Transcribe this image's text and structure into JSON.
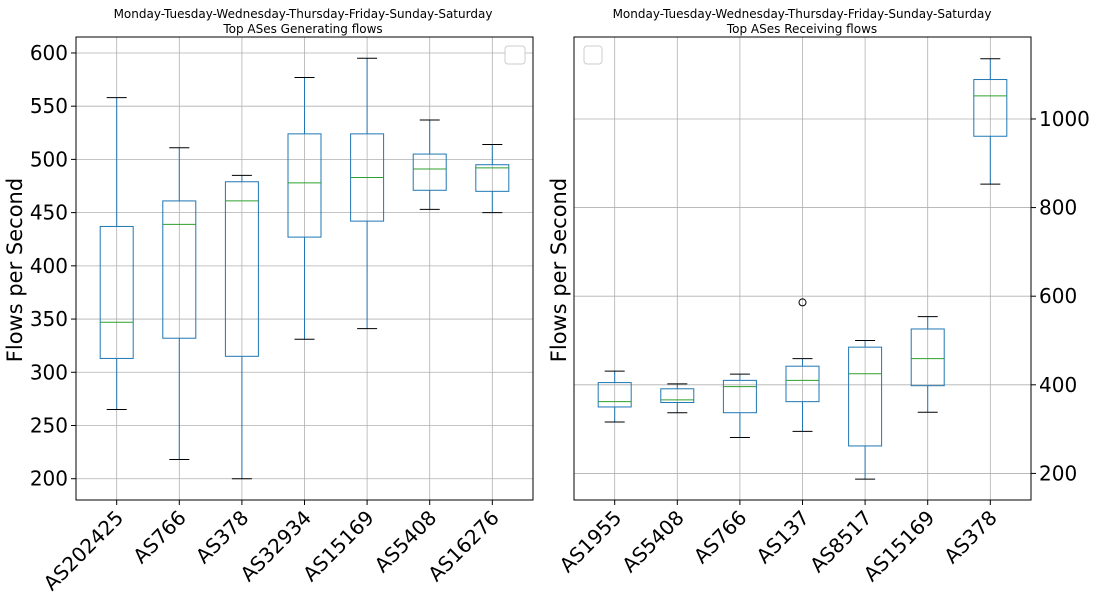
{
  "chart_data": [
    {
      "type": "box",
      "title_line1": "Monday-Tuesday-Wednesday-Thursday-Friday-Sunday-Saturday",
      "title_line2": "Top ASes Generating flows",
      "ylabel": "Flows per Second",
      "xlabel": "",
      "yaxis_side": "left",
      "ylim": [
        180,
        615
      ],
      "yticks": [
        200,
        250,
        300,
        350,
        400,
        450,
        500,
        550,
        600
      ],
      "grid": true,
      "legend": "top-right (empty)",
      "box_color": "#1f77b4",
      "median_color": "#2ca02c",
      "categories": [
        "AS202425",
        "AS766",
        "AS378",
        "AS32934",
        "AS15169",
        "AS5408",
        "AS16276"
      ],
      "boxes": [
        {
          "whislo": 265,
          "q1": 313,
          "med": 347,
          "q3": 437,
          "whishi": 558,
          "fliers": []
        },
        {
          "whislo": 218,
          "q1": 332,
          "med": 439,
          "q3": 461,
          "whishi": 511,
          "fliers": []
        },
        {
          "whislo": 200,
          "q1": 315,
          "med": 461,
          "q3": 479,
          "whishi": 485,
          "fliers": []
        },
        {
          "whislo": 331,
          "q1": 427,
          "med": 478,
          "q3": 524,
          "whishi": 577,
          "fliers": []
        },
        {
          "whislo": 341,
          "q1": 442,
          "med": 483,
          "q3": 524,
          "whishi": 595,
          "fliers": []
        },
        {
          "whislo": 453,
          "q1": 471,
          "med": 491,
          "q3": 505,
          "whishi": 537,
          "fliers": []
        },
        {
          "whislo": 450,
          "q1": 470,
          "med": 492,
          "q3": 495,
          "whishi": 514,
          "fliers": []
        }
      ]
    },
    {
      "type": "box",
      "title_line1": "Monday-Tuesday-Wednesday-Thursday-Friday-Sunday-Saturday",
      "title_line2": "Top ASes Receiving flows",
      "ylabel": "Flows per Second",
      "xlabel": "",
      "yaxis_side": "right",
      "ylim": [
        140,
        1185
      ],
      "yticks": [
        200,
        400,
        600,
        800,
        1000
      ],
      "grid": true,
      "legend": "top-left (empty)",
      "box_color": "#1f77b4",
      "median_color": "#2ca02c",
      "categories": [
        "AS1955",
        "AS5408",
        "AS766",
        "AS137",
        "AS8517",
        "AS15169",
        "AS378"
      ],
      "boxes": [
        {
          "whislo": 316,
          "q1": 350,
          "med": 362,
          "q3": 405,
          "whishi": 431,
          "fliers": []
        },
        {
          "whislo": 337,
          "q1": 360,
          "med": 366,
          "q3": 391,
          "whishi": 402,
          "fliers": []
        },
        {
          "whislo": 281,
          "q1": 337,
          "med": 396,
          "q3": 410,
          "whishi": 424,
          "fliers": []
        },
        {
          "whislo": 295,
          "q1": 362,
          "med": 410,
          "q3": 442,
          "whishi": 459,
          "fliers": [
            586
          ]
        },
        {
          "whislo": 187,
          "q1": 262,
          "med": 425,
          "q3": 485,
          "whishi": 500,
          "fliers": []
        },
        {
          "whislo": 338,
          "q1": 398,
          "med": 459,
          "q3": 526,
          "whishi": 554,
          "fliers": []
        },
        {
          "whislo": 853,
          "q1": 961,
          "med": 1052,
          "q3": 1089,
          "whishi": 1136,
          "fliers": []
        }
      ]
    }
  ]
}
